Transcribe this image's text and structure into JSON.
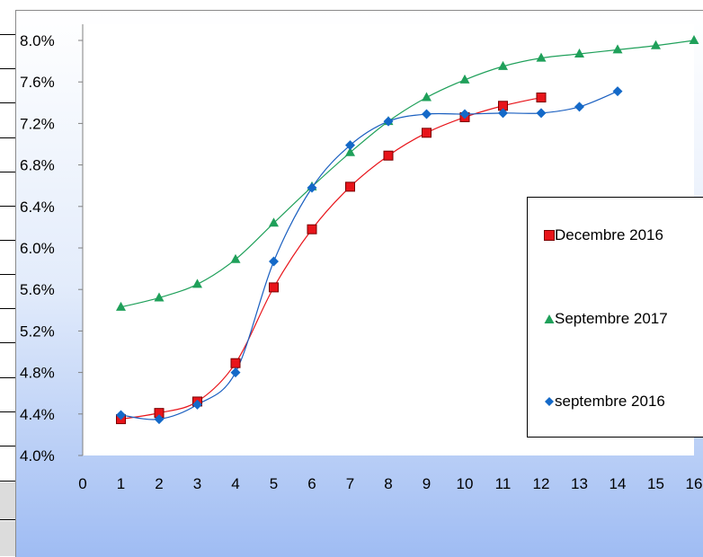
{
  "chart_data": {
    "type": "line",
    "x": [
      0,
      1,
      2,
      3,
      4,
      5,
      6,
      7,
      8,
      9,
      10,
      11,
      12,
      13,
      14,
      15,
      16
    ],
    "xlim": [
      0,
      16
    ],
    "ylim": [
      0.04,
      0.08
    ],
    "y_tick_labels": [
      "4.0%",
      "4.4%",
      "4.8%",
      "5.2%",
      "5.6%",
      "6.0%",
      "6.4%",
      "6.8%",
      "7.2%",
      "7.6%",
      "8.0%"
    ],
    "x_tick_labels": [
      "0",
      "1",
      "2",
      "3",
      "4",
      "5",
      "6",
      "7",
      "8",
      "9",
      "10",
      "11",
      "12",
      "13",
      "14",
      "15",
      "16"
    ],
    "grid": false,
    "legend_position": "right",
    "series": [
      {
        "name": "Decembre 2016",
        "marker": "square",
        "color": "#e8141a",
        "line_color": "#e8141a",
        "x": [
          1,
          2,
          3,
          4,
          5,
          6,
          7,
          8,
          9,
          10,
          11,
          12
        ],
        "values": [
          0.0435,
          0.0441,
          0.0452,
          0.0489,
          0.0562,
          0.0618,
          0.0659,
          0.0689,
          0.0711,
          0.0726,
          0.0737,
          0.0745
        ]
      },
      {
        "name": "Septembre 2017",
        "marker": "triangle",
        "color": "#1fa05a",
        "line_color": "#1fa05a",
        "x": [
          1,
          2,
          3,
          4,
          5,
          6,
          7,
          8,
          9,
          10,
          11,
          12,
          13,
          14,
          15,
          16
        ],
        "values": [
          0.0543,
          0.0552,
          0.0565,
          0.0589,
          0.0624,
          0.0659,
          0.0692,
          0.0722,
          0.0745,
          0.0762,
          0.0775,
          0.0783,
          0.0787,
          0.0791,
          0.0795,
          0.08
        ]
      },
      {
        "name": "septembre 2016",
        "marker": "diamond",
        "color": "#1469c8",
        "line_color": "#1a5fc0",
        "x": [
          1,
          2,
          3,
          4,
          5,
          6,
          7,
          8,
          9,
          10,
          11,
          12,
          13,
          14
        ],
        "values": [
          0.0439,
          0.0435,
          0.0449,
          0.048,
          0.0587,
          0.0658,
          0.0699,
          0.0722,
          0.0729,
          0.0729,
          0.073,
          0.073,
          0.0736,
          0.0751
        ]
      }
    ]
  }
}
